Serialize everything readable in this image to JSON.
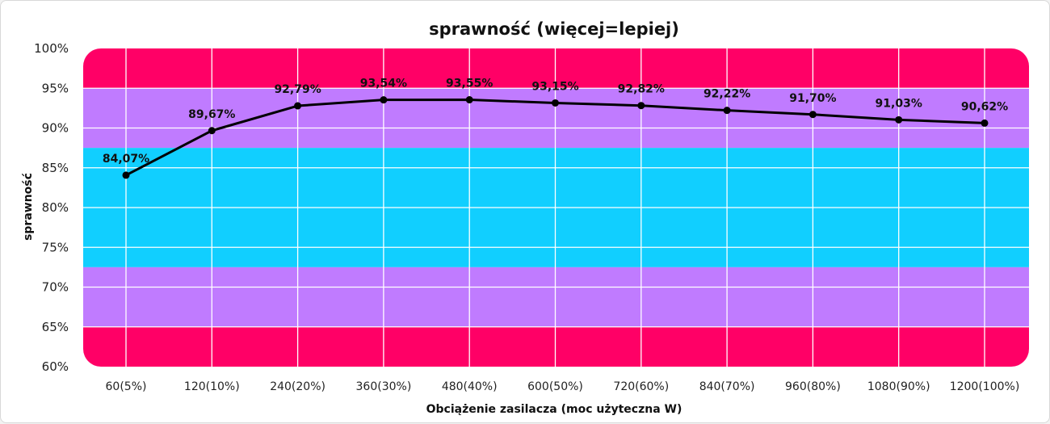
{
  "chart_data": {
    "type": "line",
    "title": "sprawność (więcej=lepiej)",
    "xlabel": "Obciążenie zasilacza (moc użyteczna W)",
    "ylabel": "sprawność",
    "ylim": [
      60,
      100
    ],
    "yticks": [
      "60%",
      "65%",
      "70%",
      "75%",
      "80%",
      "85%",
      "90%",
      "95%",
      "100%"
    ],
    "categories": [
      "60(5%)",
      "120(10%)",
      "240(20%)",
      "360(30%)",
      "480(40%)",
      "600(50%)",
      "720(60%)",
      "840(70%)",
      "960(80%)",
      "1080(90%)",
      "1200(100%)"
    ],
    "series": [
      {
        "values": [
          84.07,
          89.67,
          92.79,
          93.54,
          93.55,
          93.15,
          92.82,
          92.22,
          91.7,
          91.03,
          90.62
        ],
        "labels": [
          "84,07%",
          "89,67%",
          "92,79%",
          "93,54%",
          "93,55%",
          "93,15%",
          "92,82%",
          "92,22%",
          "91,70%",
          "91,03%",
          "90,62%"
        ],
        "color": "#000000"
      }
    ],
    "bands": [
      {
        "from": 95,
        "to": 100,
        "color": "#ff0066"
      },
      {
        "from": 87.5,
        "to": 95,
        "color": "#c07bff"
      },
      {
        "from": 72.5,
        "to": 87.5,
        "color": "#11cfff"
      },
      {
        "from": 65,
        "to": 72.5,
        "color": "#c07bff"
      },
      {
        "from": 60,
        "to": 65,
        "color": "#ff0066"
      }
    ],
    "grid": true,
    "legend": "none"
  }
}
